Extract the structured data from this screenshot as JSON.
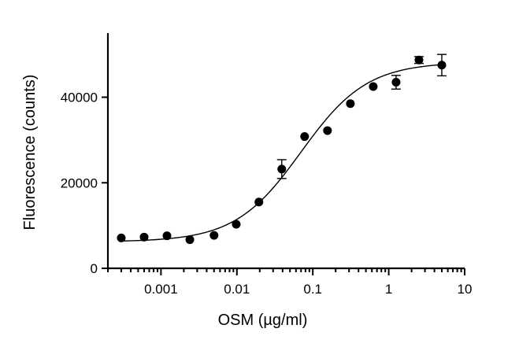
{
  "chart_data": {
    "type": "scatter",
    "xlabel": "OSM (µg/ml)",
    "ylabel": "Fluorescence (counts)",
    "xscale": "log",
    "xlim": [
      0.0002,
      10
    ],
    "ylim": [
      0,
      55000
    ],
    "x_ticks": [
      {
        "value": 0.001,
        "label": "0.001"
      },
      {
        "value": 0.01,
        "label": "0.01"
      },
      {
        "value": 0.1,
        "label": "0.1"
      },
      {
        "value": 1,
        "label": "1"
      },
      {
        "value": 10,
        "label": "10"
      }
    ],
    "y_ticks": [
      {
        "value": 0,
        "label": "0"
      },
      {
        "value": 20000,
        "label": "20000"
      },
      {
        "value": 40000,
        "label": "40000"
      }
    ],
    "grid": false,
    "points": [
      {
        "x": 0.0003,
        "y": 7100,
        "err": 0
      },
      {
        "x": 0.0006,
        "y": 7300,
        "err": 0
      },
      {
        "x": 0.0012,
        "y": 7600,
        "err": 0
      },
      {
        "x": 0.0024,
        "y": 6700,
        "err": 0
      },
      {
        "x": 0.005,
        "y": 7700,
        "err": 0
      },
      {
        "x": 0.0098,
        "y": 10300,
        "err": 0
      },
      {
        "x": 0.0195,
        "y": 15500,
        "err": 0
      },
      {
        "x": 0.039,
        "y": 23200,
        "err": 2200
      },
      {
        "x": 0.078,
        "y": 30800,
        "err": 0
      },
      {
        "x": 0.156,
        "y": 32200,
        "err": 0
      },
      {
        "x": 0.3125,
        "y": 38500,
        "err": 0
      },
      {
        "x": 0.625,
        "y": 42500,
        "err": 0
      },
      {
        "x": 1.25,
        "y": 43500,
        "err": 1600
      },
      {
        "x": 2.5,
        "y": 48700,
        "err": 800
      },
      {
        "x": 5,
        "y": 47500,
        "err": 2500
      }
    ],
    "fit": {
      "model": "four-parameter logistic",
      "bottom": 6200,
      "top": 48200,
      "ec50": 0.07,
      "hill": 1.0
    }
  }
}
